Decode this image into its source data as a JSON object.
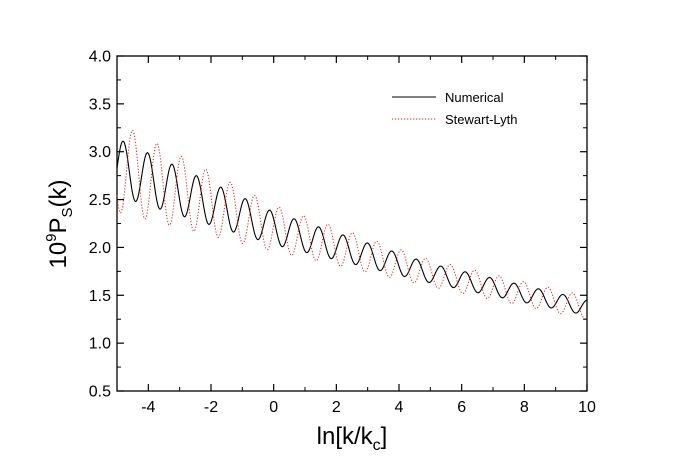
{
  "chart_data": {
    "type": "line",
    "title": "",
    "xlabel": {
      "main": "ln[k/k",
      "sub": "c",
      "tail": "]"
    },
    "ylabel": {
      "prefix": "10",
      "sup": "9",
      "main": "P",
      "sub": "S",
      "tail": "(k)"
    },
    "xlim": [
      -5,
      10
    ],
    "ylim": [
      0.5,
      4.0
    ],
    "x_ticks": [
      "-4",
      "-2",
      "0",
      "2",
      "4",
      "6",
      "8",
      "10"
    ],
    "y_ticks": [
      "0.5",
      "1.0",
      "1.5",
      "2.0",
      "2.5",
      "3.0",
      "3.5",
      "4.0"
    ],
    "grid": false,
    "legend_position": "top-right",
    "series": [
      {
        "name": "Numerical",
        "color": "#000000",
        "style": "solid",
        "x_range": [
          -5,
          10
        ],
        "baseline": [
          [
            -5,
            2.84
          ],
          [
            0,
            2.2
          ],
          [
            5,
            1.73
          ],
          [
            10,
            1.37
          ]
        ],
        "amplitude": [
          [
            -5,
            0.3
          ],
          [
            0,
            0.17
          ],
          [
            5,
            0.1
          ],
          [
            10,
            0.08
          ]
        ],
        "period": 0.78,
        "peak_near": -4.8
      },
      {
        "name": "Stewart-Lyth",
        "color": "#e0201a",
        "style": "dotted",
        "x_range": [
          -5,
          10
        ],
        "baseline": [
          [
            -5,
            2.84
          ],
          [
            0,
            2.2
          ],
          [
            5,
            1.73
          ],
          [
            10,
            1.37
          ]
        ],
        "amplitude": [
          [
            -5,
            0.47
          ],
          [
            0,
            0.24
          ],
          [
            5,
            0.14
          ],
          [
            10,
            0.12
          ]
        ],
        "period": 0.78,
        "peak_near": -4.5
      }
    ]
  }
}
